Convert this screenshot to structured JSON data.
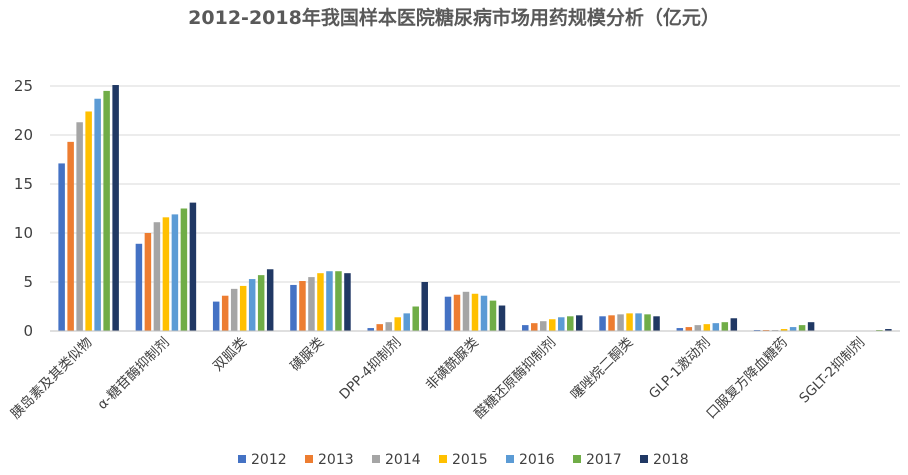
{
  "chart_data": {
    "type": "bar",
    "title": "2012-2018年我国样本医院糖尿病市场用药规模分析（亿元）",
    "xlabel": "",
    "ylabel": "",
    "ylim": [
      0,
      25
    ],
    "yticks": [
      0,
      5,
      10,
      15,
      20,
      25
    ],
    "grid": true,
    "legend_position": "bottom",
    "categories": [
      "胰岛素及其类似物",
      "α-糖苷酶抑制剂",
      "双胍类",
      "磺脲类",
      "DPP-4抑制剂",
      "非磺酰脲类",
      "醛糖还原酶抑制剂",
      "噻唑烷二酮类",
      "GLP-1激动剂",
      "口服复方降血糖药",
      "SGLT-2抑制剂"
    ],
    "series": [
      {
        "name": "2012",
        "color": "#4472C4",
        "values": [
          17.1,
          8.9,
          3.0,
          4.7,
          0.3,
          3.5,
          0.6,
          1.5,
          0.3,
          0.1,
          0.0
        ]
      },
      {
        "name": "2013",
        "color": "#ED7D31",
        "values": [
          19.3,
          10.0,
          3.6,
          5.1,
          0.7,
          3.7,
          0.8,
          1.6,
          0.4,
          0.1,
          0.0
        ]
      },
      {
        "name": "2014",
        "color": "#A5A5A5",
        "values": [
          21.3,
          11.1,
          4.3,
          5.5,
          0.9,
          4.0,
          1.0,
          1.7,
          0.6,
          0.1,
          0.0
        ]
      },
      {
        "name": "2015",
        "color": "#FFC000",
        "values": [
          22.4,
          11.6,
          4.6,
          5.9,
          1.4,
          3.8,
          1.2,
          1.8,
          0.7,
          0.2,
          0.0
        ]
      },
      {
        "name": "2016",
        "color": "#5B9BD5",
        "values": [
          23.7,
          11.9,
          5.3,
          6.1,
          1.8,
          3.6,
          1.4,
          1.8,
          0.8,
          0.4,
          0.0
        ]
      },
      {
        "name": "2017",
        "color": "#70AD47",
        "values": [
          24.5,
          12.5,
          5.7,
          6.1,
          2.5,
          3.1,
          1.5,
          1.7,
          0.9,
          0.6,
          0.1
        ]
      },
      {
        "name": "2018",
        "color": "#203864",
        "values": [
          25.1,
          13.1,
          6.3,
          5.9,
          5.0,
          2.6,
          1.6,
          1.5,
          1.3,
          0.9,
          0.2
        ]
      }
    ]
  },
  "style": {
    "grid_color": "#d9d9d9",
    "axis_color": "#bfbfbf",
    "text_color": "#404040",
    "title_color": "#595959"
  }
}
